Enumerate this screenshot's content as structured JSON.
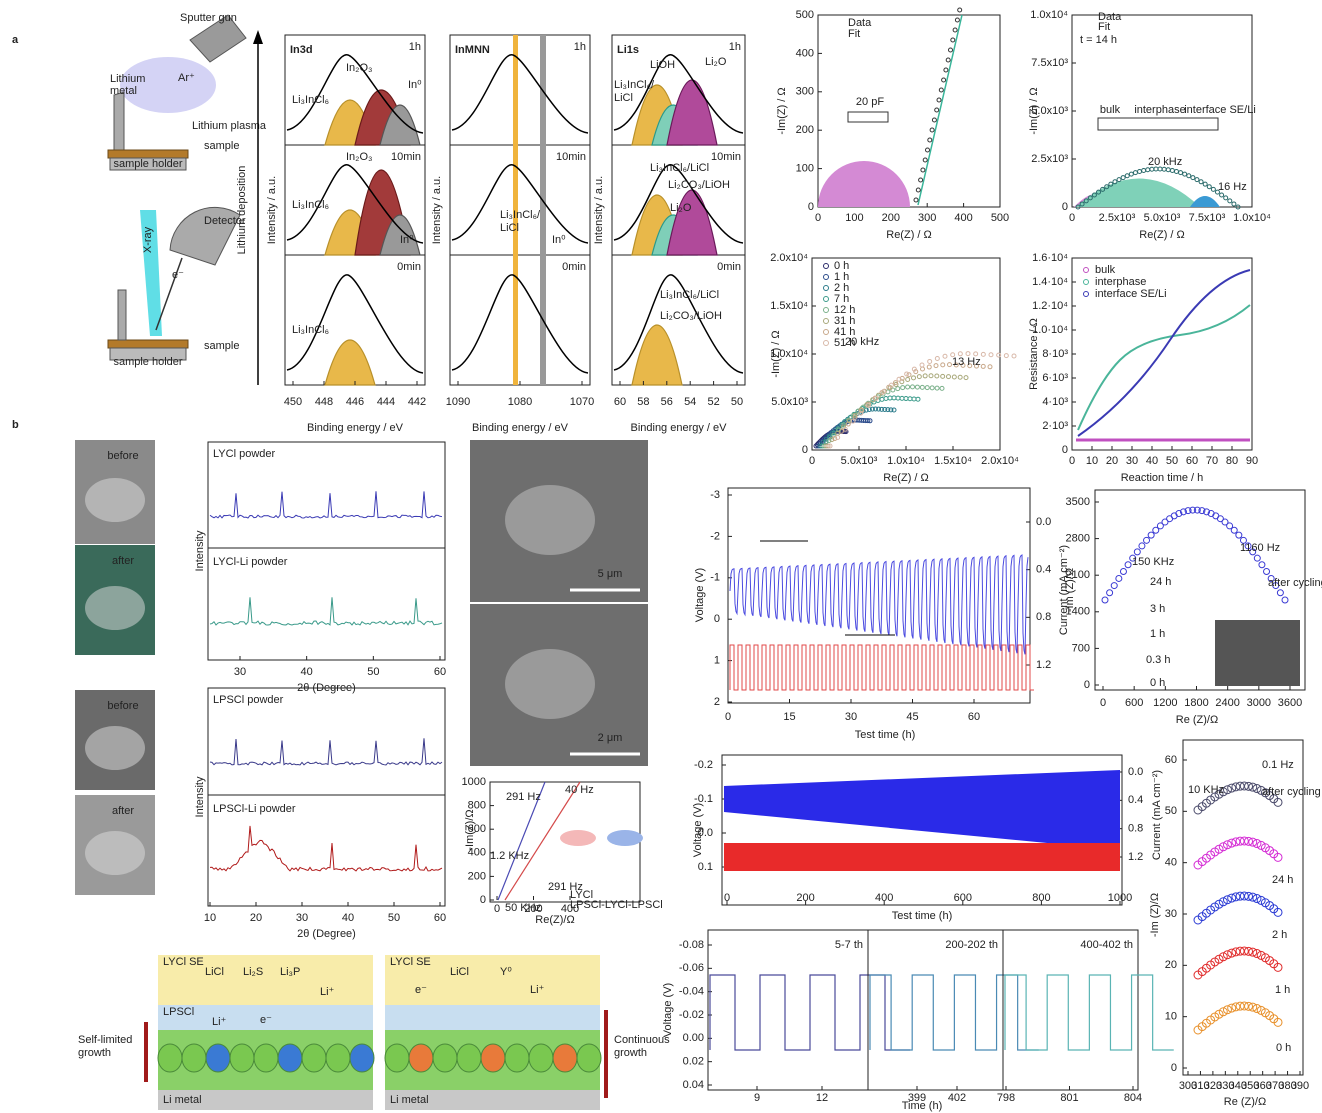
{
  "panel_labels": {
    "a": "a",
    "b": "b"
  },
  "a_schematic": {
    "sputter_gun": "Sputter gun",
    "lithium": "Lithium",
    "metal": "metal",
    "ar": "Ar⁺",
    "plasma": "Lithium plasma",
    "sample_top": "sample",
    "holder_top": "sample holder",
    "xray": "X-ray",
    "detector": "Detector",
    "electron": "e⁻",
    "sample_bottom": "sample",
    "holder_bottom": "sample holder",
    "deposition": "Lithium deposition"
  },
  "xps": {
    "y_label": "Intensity / a.u.",
    "x_label": "Binding energy / eV",
    "panels": [
      {
        "title": "In3d",
        "times": [
          "1h",
          "10min",
          "0min"
        ],
        "xticks": [
          "450",
          "448",
          "446",
          "444",
          "442"
        ],
        "labels": [
          "In₂O₃",
          "In⁰",
          "Li₃InCl₆",
          "In₂O₃",
          "Li₃InCl₆",
          "In⁰",
          "Li₃InCl₆"
        ]
      },
      {
        "title": "InMNN",
        "times": [
          "1h",
          "10min",
          "0min"
        ],
        "xticks": [
          "1090",
          "1080",
          "1070"
        ],
        "labels": [
          "Li₃InCl₆/",
          "LiCl",
          "In⁰"
        ]
      },
      {
        "title": "Li1s",
        "times": [
          "1h",
          "10min",
          "0min"
        ],
        "xticks": [
          "60",
          "58",
          "56",
          "54",
          "52",
          "50"
        ],
        "labels": [
          "LiOH",
          "Li₂O",
          "Li₃InCl₆/",
          "LiCl",
          "Li₃InCl₆/LiCl",
          "Li₂CO₃/LiOH",
          "Li₂O",
          "Li₃InCl₆/LiCl",
          "Li₂CO₃/LiOH"
        ]
      }
    ]
  },
  "eis_a": [
    {
      "xticks": [
        "0",
        "100",
        "200",
        "300",
        "400",
        "500"
      ],
      "yticks": [
        "0",
        "100",
        "200",
        "300",
        "400",
        "500"
      ],
      "x_label": "Re(Z) / Ω",
      "y_label": "-Im(Z) / Ω",
      "legend": [
        "Data",
        "Fit"
      ],
      "labels": [
        "20 pF"
      ]
    },
    {
      "xticks": [
        "0",
        "2.5x10³",
        "5.0x10³",
        "7.5x10³",
        "1.0x10⁴"
      ],
      "yticks": [
        "0",
        "2.5x10³",
        "5.0x10³",
        "7.5x10³",
        "1.0x10⁴"
      ],
      "x_label": "Re(Z) / Ω",
      "y_label": "-Im(Z) / Ω",
      "legend": [
        "Data",
        "Fit"
      ],
      "labels": [
        "t = 14 h",
        "bulk",
        "interphase",
        "interface SE/Li",
        "20 kHz",
        "16 Hz"
      ]
    },
    {
      "xticks": [
        "0",
        "5.0x10³",
        "1.0x10⁴",
        "1.5x10⁴",
        "2.0x10⁴"
      ],
      "yticks": [
        "0",
        "5.0x10³",
        "1.0x10⁴",
        "1.5x10⁴",
        "2.0x10⁴"
      ],
      "x_label": "Re(Z) / Ω",
      "y_label": "-Im(Z) / Ω",
      "legend": [
        "0 h",
        "1 h",
        "2 h",
        "7 h",
        "12 h",
        "31 h",
        "41 h",
        "51 h"
      ],
      "labels": [
        "20 kHz",
        "13 Hz"
      ]
    },
    {
      "xticks": [
        "0",
        "10",
        "20",
        "30",
        "40",
        "50",
        "60",
        "70",
        "80",
        "90"
      ],
      "yticks": [
        "0",
        "2·10³",
        "4·10³",
        "6·10³",
        "8·10³",
        "1.0·10⁴",
        "1.2·10⁴",
        "1.4·10⁴",
        "1.6·10⁴"
      ],
      "x_label": "Reaction time / h",
      "y_label": "Resistance / Ω",
      "legend": [
        "bulk",
        "interphase",
        "interface SE/Li"
      ],
      "labels": []
    }
  ],
  "photos": [
    "before",
    "after",
    "before",
    "after"
  ],
  "xrd": [
    {
      "titles": [
        "LYCl powder",
        "LYCl-Li powder"
      ],
      "y_label": "Intensity",
      "xticks": [
        "30",
        "40",
        "50",
        "60"
      ],
      "x_label": "2θ (Degree)"
    },
    {
      "titles": [
        "LPSCl powder",
        "LPSCl-Li powder"
      ],
      "y_label": "Intensity",
      "xticks": [
        "10",
        "20",
        "30",
        "40",
        "50",
        "60"
      ],
      "x_label": "2θ (Degree)"
    }
  ],
  "sem": [
    "5 μm",
    "2 μm"
  ],
  "inset": {
    "yticks": [
      "0",
      "200",
      "400",
      "600",
      "800",
      "1000"
    ],
    "xticks": [
      "0",
      "200",
      "400"
    ],
    "x_label": "Re(Z)/Ω",
    "y_label": "-Im(Z)/Ω",
    "labels": [
      "291 Hz",
      "40 Hz",
      "1.2 KHz",
      "291 Hz",
      "50 KHz"
    ],
    "legend": [
      "LYCl",
      "LPSCl-LYCl-LPSCl"
    ]
  },
  "schematic_b": [
    {
      "texts": [
        "LYCl SE",
        "LiCl",
        "Li₂S",
        "Li₃P",
        "Li⁺",
        "LPSCl",
        "Li⁺",
        "e⁻",
        "Li metal"
      ],
      "side": [
        "Self-limited",
        "growth"
      ]
    },
    {
      "texts": [
        "LYCl SE",
        "LiCl",
        "Y⁰",
        "e⁻",
        "Li⁺",
        "Li metal"
      ],
      "side": [
        "Continuous",
        "growth"
      ]
    }
  ],
  "cycling1": {
    "yticks": [
      "2",
      "1",
      "0",
      "-1",
      "-2",
      "-3"
    ],
    "y2ticks": [
      "1.2",
      "0.8",
      "0.4",
      "0.0"
    ],
    "xticks": [
      "0",
      "15",
      "30",
      "45",
      "60"
    ],
    "x_label": "Test time (h)",
    "y_label": "Voltage (V)",
    "y2_label": "Current (mA cm⁻²)"
  },
  "eis_b1": {
    "yticks": [
      "0",
      "700",
      "1400",
      "2100",
      "2800",
      "3500"
    ],
    "xticks": [
      "0",
      "600",
      "1200",
      "1800",
      "2400",
      "3000",
      "3600"
    ],
    "x_label": "Re (Z)/Ω",
    "y_label": "-Im (Z)/Ω",
    "labels": [
      "150 KHz",
      "1160 Hz",
      "after cycling",
      "24 h",
      "3 h",
      "1 h",
      "0.3 h",
      "0 h"
    ]
  },
  "cycling2": {
    "yticks": [
      "0.1",
      "0.0",
      "-0.1",
      "-0.2"
    ],
    "y2ticks": [
      "1.2",
      "0.8",
      "0.4",
      "0.0"
    ],
    "xticks": [
      "0",
      "200",
      "400",
      "600",
      "800",
      "1000"
    ],
    "x_label": "Test time (h)",
    "y_label": "Voltage (V)",
    "y2_label": "Current (mA cm⁻²)"
  },
  "zoom": {
    "yticks": [
      "0.04",
      "0.02",
      "0.00",
      "-0.02",
      "-0.04",
      "-0.06",
      "-0.08"
    ],
    "y_label": "Voltage (V)",
    "x_label": "Time (h)",
    "panels": [
      {
        "title": "5-7 th",
        "xticks": [
          "9",
          "12"
        ]
      },
      {
        "title": "200-202 th",
        "xticks": [
          "399",
          "402"
        ]
      },
      {
        "title": "400-402 th",
        "xticks": [
          "798",
          "801",
          "804"
        ]
      }
    ]
  },
  "eis_b2": {
    "yticks": [
      "0",
      "10",
      "20",
      "30",
      "40",
      "50",
      "60"
    ],
    "xticks": [
      "300",
      "310",
      "320",
      "330",
      "340",
      "350",
      "360",
      "370",
      "380",
      "390"
    ],
    "x_label": "Re (Z)/Ω",
    "y_label": "-Im (Z)/Ω",
    "labels": [
      "0.1 Hz",
      "10 KHz",
      "after cycling",
      "24 h",
      "2 h",
      "1 h",
      "0 h"
    ]
  }
}
